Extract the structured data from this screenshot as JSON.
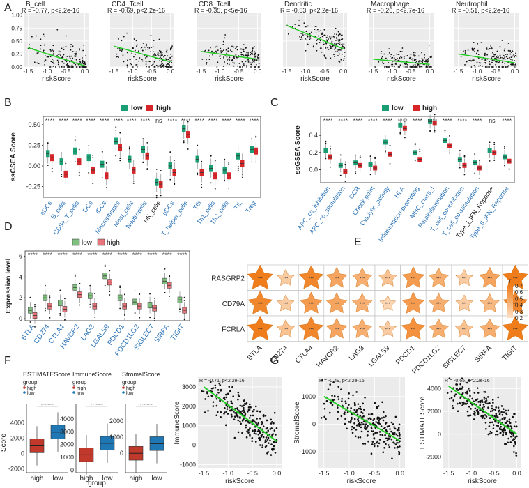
{
  "colors": {
    "low": "#1a9e73",
    "high": "#d6262a",
    "low_d": "#7fbf7f",
    "high_d": "#e8757b",
    "accent": "#f07d1c",
    "blue": "#2a72b5",
    "gray": "#ebebeb",
    "fit": "#22cc22",
    "red_box": "#c0392b",
    "blue_box": "#1f77b4"
  },
  "panel_letters": [
    "A",
    "B",
    "C",
    "D",
    "E",
    "F",
    "G"
  ],
  "panel_a": {
    "xlabel": "riskScore",
    "x_ticks": [
      "-1.5",
      "-1.0",
      "-0.5",
      "0.0"
    ],
    "y_ticks": [
      "0.00",
      "0.25",
      "0.50",
      "0.75",
      "1.00"
    ],
    "plots": [
      {
        "name": "B_cell",
        "stat": "R = -0.77,  p<2.2e-16",
        "slope": -0.77
      },
      {
        "name": "CD4_Tcell",
        "stat": "R = -0.69,  p<2.2e-16",
        "slope": -0.69
      },
      {
        "name": "CD8_Tcell",
        "stat": "R = -0.35,  p<5e-16",
        "slope": -0.35
      },
      {
        "name": "Dendritic",
        "stat": "R = -0.53,  p<2.2e-16",
        "slope": -0.53
      },
      {
        "name": "Macrophage",
        "stat": "R = -0.26,  p<2.7e-16",
        "slope": -0.26
      },
      {
        "name": "Neutrophil",
        "stat": "R = -0.51,  p<2.2e-16",
        "slope": -0.51
      }
    ]
  },
  "panel_b": {
    "ylabel": "ssGSEA Score",
    "legend": [
      "low",
      "high"
    ],
    "y_ticks": [
      "-0.25",
      "0.00",
      "0.25",
      "0.50"
    ],
    "categories": [
      "aDCs",
      "B_cells",
      "CD8+_T_cells",
      "DCs",
      "iDCs",
      "Macrophages",
      "Mast_cells",
      "Neutrophils",
      "NK_cells",
      "pDCs",
      "T_helper_cells",
      "Tfh",
      "Th1_cells",
      "Th2_cells",
      "TIL",
      "Treg"
    ],
    "signif": [
      "****",
      "****",
      "****",
      "****",
      "****",
      "****",
      "****",
      "****",
      "ns",
      "****",
      "****",
      "****",
      "****",
      "****",
      "****",
      "****"
    ]
  },
  "panel_c": {
    "ylabel": "ssGSEA Score",
    "legend": [
      "low",
      "high"
    ],
    "y_ticks": [
      "0.0",
      "0.2",
      "0.4"
    ],
    "categories": [
      "APC_co_inhibition",
      "APC_co_stimulation",
      "CCR",
      "Check-point",
      "Cytolytic_activity",
      "HLA",
      "Inflammation-promoting",
      "MHC_class_I",
      "Parainflammation",
      "T_cell_co-inhibition",
      "T_cell_co-stimulation",
      "Type_I_IFN_Reponse",
      "Type_II_IFN_Reponse"
    ],
    "signif": [
      "****",
      "****",
      "****",
      "****",
      "****",
      "****",
      "****",
      "****",
      "****",
      "****",
      "****",
      "ns",
      "****"
    ]
  },
  "panel_d": {
    "ylabel": "Expression level",
    "legend": [
      "low",
      "high"
    ],
    "y_ticks": [
      "0",
      "2",
      "4",
      "6"
    ],
    "categories": [
      "BTLA",
      "CD274",
      "CTLA4",
      "HAVCR2",
      "LAG3",
      "LGALS9",
      "PDCD1",
      "PDCD1LG2",
      "SIGLEC7",
      "SIRPA",
      "TIGIT"
    ],
    "signif": [
      "****",
      "****",
      "****",
      "****",
      "****",
      "****",
      "****",
      "****",
      "****",
      "****",
      "****"
    ]
  },
  "panel_e": {
    "rows": [
      "RASGRP2",
      "CD79A",
      "FCRLA"
    ],
    "cols": [
      "BTLA",
      "CD274",
      "CTLA4",
      "HAVCR2",
      "LAG3",
      "LGALS9",
      "PDCD1",
      "PDCD1LG2",
      "SIGLEC7",
      "SIRPA",
      "TIGIT"
    ],
    "star_label": "***",
    "legend_title": "r",
    "legend_ticks": [
      "0.7",
      "0.6",
      "0.5",
      "0.4",
      "0.3",
      "0.2"
    ]
  },
  "panel_f": {
    "ylabel": "Score",
    "xlabel": "group",
    "group_title": "group",
    "legend": [
      "high",
      "low"
    ],
    "pval": "p = 1.23e-16",
    "plots": [
      {
        "title": "ESTIMATEScore",
        "y_ticks": [
          "-2000",
          "0",
          "2000",
          "4000"
        ]
      },
      {
        "title": "ImmuneScore",
        "y_ticks": [
          "0",
          "1000",
          "2000",
          "3000",
          "4000"
        ]
      },
      {
        "title": "StromalScore",
        "y_ticks": [
          "0",
          "1000",
          "2000"
        ]
      }
    ],
    "x_labels": [
      "high",
      "low"
    ]
  },
  "panel_g": {
    "xlabel": "riskScore",
    "x_ticks": [
      "-1.5",
      "-1.0",
      "-0.5",
      "0.0"
    ],
    "plots": [
      {
        "ylabel": "ImmuneScore",
        "stat": "R = -0.71,  p<2.2e-16",
        "y_ticks": [
          "-1000",
          "0",
          "1000",
          "2000",
          "3000"
        ]
      },
      {
        "ylabel": "StromalScore",
        "stat": "R = -0.49,  p<2.2e-16",
        "y_ticks": [
          "-1000",
          "0",
          "1000"
        ]
      },
      {
        "ylabel": "ESTIMATEScore",
        "stat": "R = -0.65,  p<2.2e-16",
        "y_ticks": [
          "-2000",
          "0",
          "2000",
          "4000"
        ]
      }
    ]
  },
  "chart_data": [
    {
      "type": "scatter",
      "panel": "A",
      "title": "B_cell",
      "xlabel": "riskScore",
      "r": -0.77,
      "xlim": [
        -1.6,
        0.1
      ],
      "ylim": [
        0,
        1.05
      ],
      "fit": {
        "x": [
          -1.5,
          0
        ],
        "y": [
          0.37,
          0.02
        ]
      }
    },
    {
      "type": "scatter",
      "panel": "A",
      "title": "CD4_Tcell",
      "xlabel": "riskScore",
      "r": -0.69,
      "xlim": [
        -1.6,
        0.1
      ],
      "ylim": [
        0,
        1.05
      ],
      "fit": {
        "x": [
          -1.5,
          0
        ],
        "y": [
          0.4,
          0.1
        ]
      }
    },
    {
      "type": "scatter",
      "panel": "A",
      "title": "CD8_Tcell",
      "xlabel": "riskScore",
      "r": -0.35,
      "xlim": [
        -1.6,
        0.1
      ],
      "ylim": [
        0,
        1.05
      ],
      "fit": {
        "x": [
          -1.5,
          0
        ],
        "y": [
          0.3,
          0.15
        ]
      }
    },
    {
      "type": "scatter",
      "panel": "A",
      "title": "Dendritic",
      "xlabel": "riskScore",
      "r": -0.53,
      "xlim": [
        -1.6,
        0.1
      ],
      "ylim": [
        0,
        1.05
      ],
      "fit": {
        "x": [
          -1.5,
          0
        ],
        "y": [
          0.8,
          0.35
        ]
      }
    },
    {
      "type": "scatter",
      "panel": "A",
      "title": "Macrophage",
      "xlabel": "riskScore",
      "r": -0.26,
      "xlim": [
        -1.6,
        0.1
      ],
      "ylim": [
        0,
        1.05
      ],
      "fit": {
        "x": [
          -1.5,
          0
        ],
        "y": [
          0.15,
          0.05
        ]
      }
    },
    {
      "type": "scatter",
      "panel": "A",
      "title": "Neutrophil",
      "xlabel": "riskScore",
      "r": -0.51,
      "xlim": [
        -1.6,
        0.1
      ],
      "ylim": [
        0,
        1.05
      ],
      "fit": {
        "x": [
          -1.5,
          0
        ],
        "y": [
          0.25,
          0.08
        ]
      }
    },
    {
      "type": "box",
      "panel": "B",
      "ylabel": "ssGSEA Score",
      "series": [
        "low",
        "high"
      ],
      "categories": [
        "aDCs",
        "B_cells",
        "CD8+_T_cells",
        "DCs",
        "iDCs",
        "Macrophages",
        "Mast_cells",
        "Neutrophils",
        "NK_cells",
        "pDCs",
        "T_helper_cells",
        "Tfh",
        "Th1_cells",
        "Th2_cells",
        "TIL",
        "Treg"
      ],
      "low_median": [
        0.15,
        0.05,
        0.18,
        0.1,
        0.02,
        0.3,
        0.08,
        0.2,
        -0.2,
        0.0,
        0.45,
        0.08,
        -0.03,
        -0.05,
        0.12,
        0.2
      ],
      "high_median": [
        0.1,
        -0.1,
        0.05,
        -0.05,
        -0.12,
        0.22,
        -0.05,
        0.12,
        -0.22,
        -0.08,
        0.38,
        -0.08,
        -0.12,
        -0.12,
        0.03,
        0.18
      ]
    },
    {
      "type": "box",
      "panel": "C",
      "ylabel": "ssGSEA Score",
      "series": [
        "low",
        "high"
      ],
      "categories": [
        "APC_co_inhibition",
        "APC_co_stimulation",
        "CCR",
        "Check-point",
        "Cytolytic_activity",
        "HLA",
        "Inflammation-promoting",
        "MHC_class_I",
        "Parainflammation",
        "T_cell_co-inhibition",
        "T_cell_co-stimulation",
        "Type_I_IFN_Reponse",
        "Type_II_IFN_Reponse"
      ],
      "low_median": [
        0.22,
        0.05,
        0.08,
        0.06,
        0.32,
        0.52,
        0.2,
        0.56,
        0.34,
        0.12,
        0.08,
        0.22,
        0.15
      ],
      "high_median": [
        0.15,
        -0.02,
        0.05,
        0.02,
        0.18,
        0.48,
        0.12,
        0.54,
        0.28,
        0.05,
        0.02,
        0.2,
        0.1
      ]
    },
    {
      "type": "box",
      "panel": "D",
      "ylabel": "Expression level",
      "series": [
        "low",
        "high"
      ],
      "categories": [
        "BTLA",
        "CD274",
        "CTLA4",
        "HAVCR2",
        "LAG3",
        "LGALS9",
        "PDCD1",
        "PDCD1LG2",
        "SIGLEC7",
        "SIRPA",
        "TIGIT"
      ],
      "low_median": [
        0.8,
        2.0,
        1.5,
        3.0,
        2.2,
        4.1,
        2.0,
        1.6,
        1.3,
        3.6,
        1.8
      ],
      "high_median": [
        0.3,
        1.2,
        0.9,
        2.3,
        1.2,
        3.5,
        1.2,
        1.2,
        1.0,
        3.2,
        0.8
      ]
    },
    {
      "type": "heatmap",
      "panel": "E",
      "rows": [
        "RASGRP2",
        "CD79A",
        "FCRLA"
      ],
      "cols": [
        "BTLA",
        "CD274",
        "CTLA4",
        "HAVCR2",
        "LAG3",
        "LGALS9",
        "PDCD1",
        "PDCD1LG2",
        "SIGLEC7",
        "SIRPA",
        "TIGIT"
      ],
      "values": [
        [
          0.7,
          0.3,
          0.65,
          0.5,
          0.45,
          0.35,
          0.55,
          0.45,
          0.3,
          0.5,
          0.7
        ],
        [
          0.65,
          0.3,
          0.55,
          0.5,
          0.45,
          0.25,
          0.55,
          0.45,
          0.3,
          0.4,
          0.65
        ],
        [
          0.7,
          0.35,
          0.65,
          0.5,
          0.45,
          0.3,
          0.6,
          0.45,
          0.35,
          0.45,
          0.7
        ]
      ],
      "range": [
        0.2,
        0.7
      ]
    },
    {
      "type": "box",
      "panel": "F",
      "groups": [
        "high",
        "low"
      ],
      "plots": [
        {
          "title": "ESTIMATEScore",
          "high_median": 1000,
          "low_median": 2800
        },
        {
          "title": "ImmuneScore",
          "high_median": 1200,
          "low_median": 2100
        },
        {
          "title": "StromalScore",
          "high_median": 0,
          "low_median": 600
        }
      ]
    },
    {
      "type": "scatter",
      "panel": "G",
      "xlabel": "riskScore",
      "plots": [
        {
          "ylabel": "ImmuneScore",
          "r": -0.71,
          "fit": {
            "x": [
              -1.5,
              0
            ],
            "y": [
              3000,
              200
            ]
          }
        },
        {
          "ylabel": "StromalScore",
          "r": -0.49,
          "fit": {
            "x": [
              -1.5,
              0
            ],
            "y": [
              1000,
              -600
            ]
          }
        },
        {
          "ylabel": "ESTIMATEScore",
          "r": -0.65,
          "fit": {
            "x": [
              -1.5,
              0
            ],
            "y": [
              4200,
              0
            ]
          }
        }
      ]
    }
  ]
}
